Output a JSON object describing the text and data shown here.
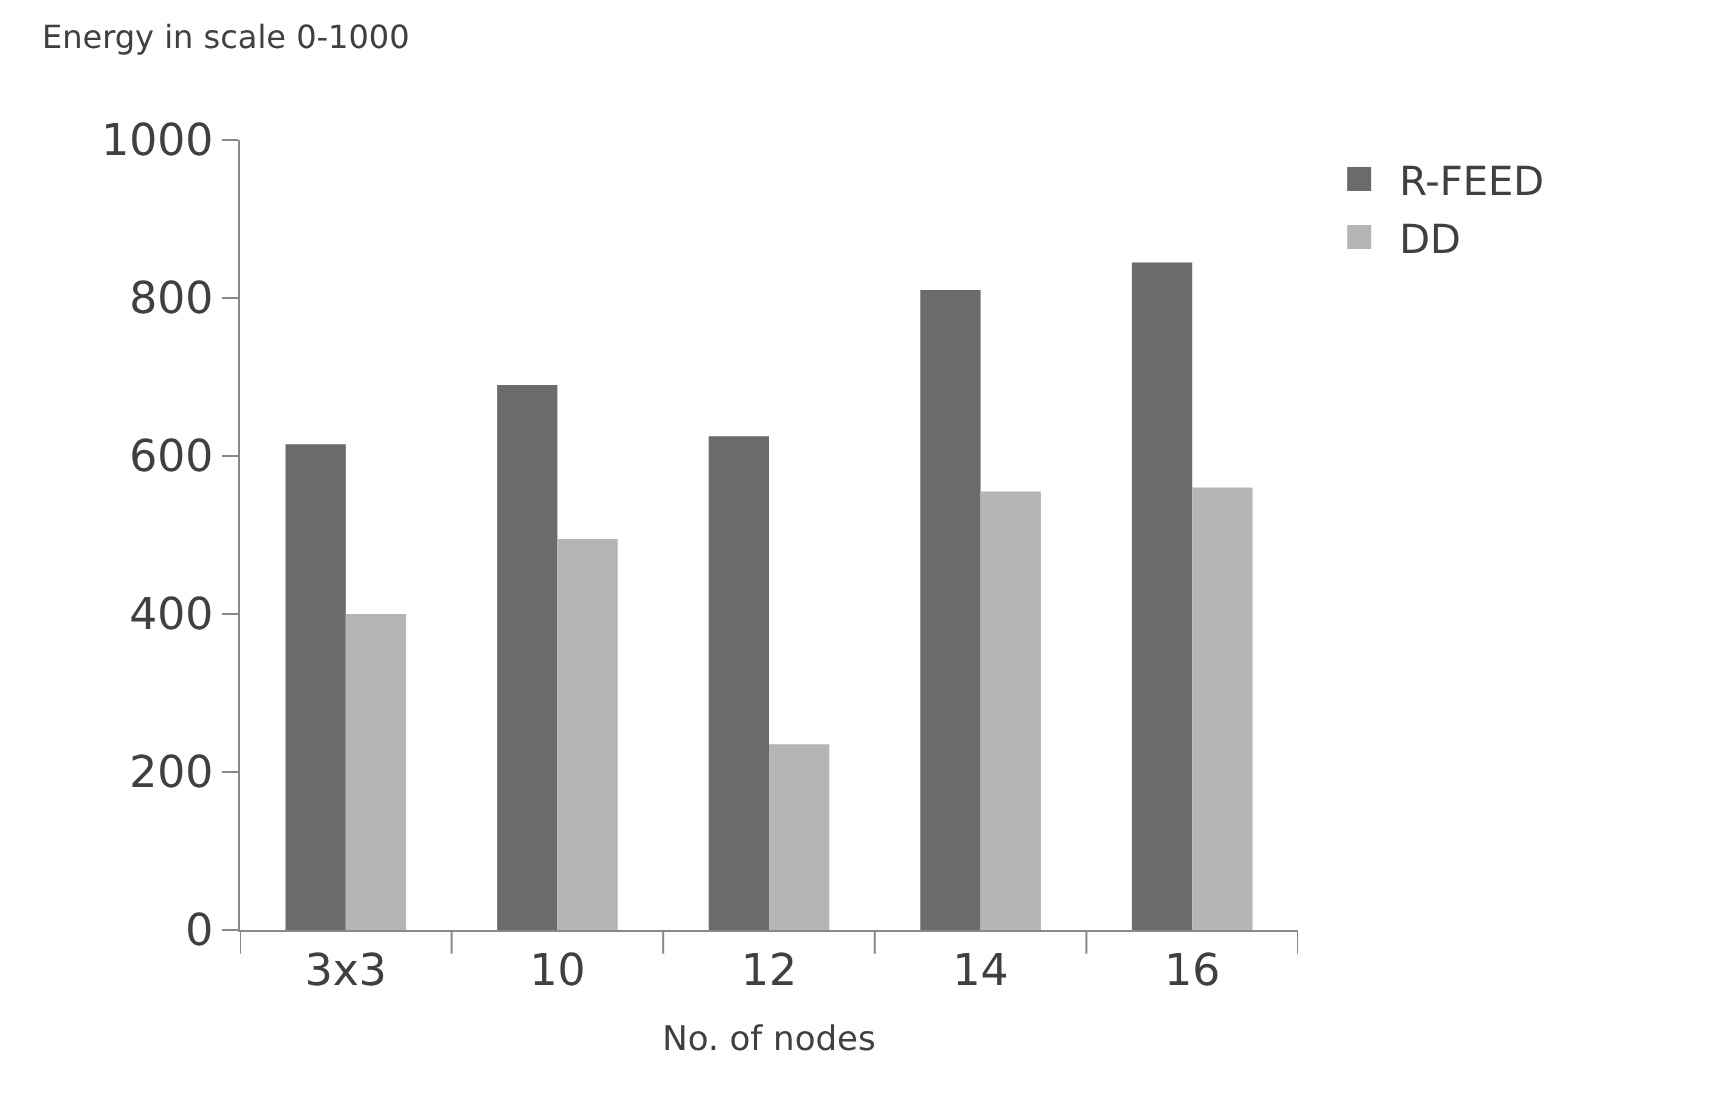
{
  "chart_data": {
    "type": "bar",
    "ylabel": "Energy in scale 0-1000",
    "xlabel": "No. of nodes",
    "categories": [
      "3x3",
      "10",
      "12",
      "14",
      "16"
    ],
    "series": [
      {
        "name": "R-FEED",
        "color": "#6b6b6b",
        "values": [
          615,
          690,
          625,
          810,
          845
        ]
      },
      {
        "name": "DD",
        "color": "#b5b5b5",
        "values": [
          400,
          495,
          235,
          555,
          560
        ]
      }
    ],
    "ylim": [
      0,
      1000
    ],
    "yticks": [
      0,
      200,
      400,
      600,
      800,
      1000
    ],
    "legend": "top right"
  }
}
